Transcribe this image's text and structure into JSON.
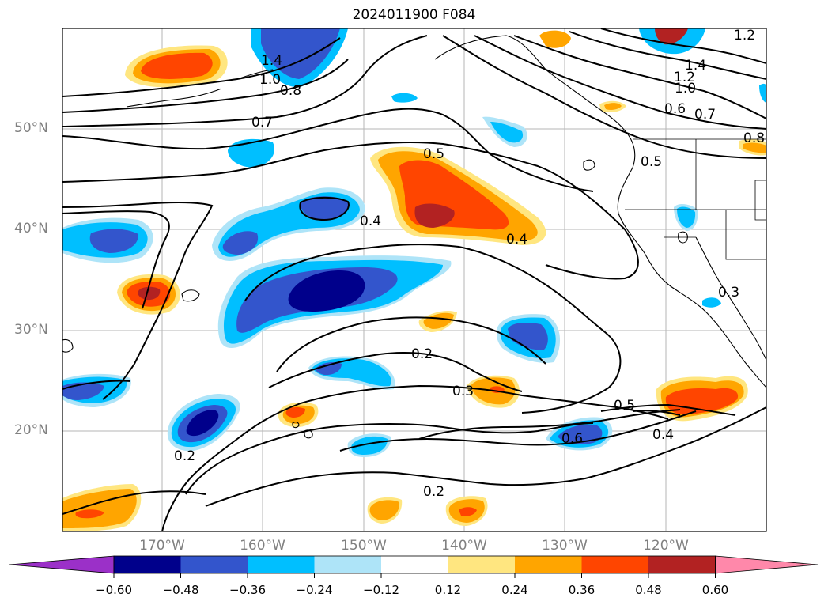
{
  "title": "2024011900 F084",
  "lat_labels": [
    "50°N",
    "40°N",
    "30°N",
    "20°N"
  ],
  "lon_labels": [
    "170°W",
    "160°W",
    "150°W",
    "140°W",
    "130°W",
    "120°W"
  ],
  "colorbar": {
    "ticks": [
      "−0.60",
      "−0.48",
      "−0.36",
      "−0.24",
      "−0.12",
      "0.12",
      "0.24",
      "0.36",
      "0.48",
      "0.60"
    ],
    "colors": [
      "#9b30c8",
      "#00008b",
      "#3355cc",
      "#00bfff",
      "#aee4f8",
      "#ffffff",
      "#ffe680",
      "#ffa500",
      "#ff4500",
      "#b22222",
      "#ff88aa"
    ]
  },
  "contour_labels": [
    "1.0",
    "0.8",
    "0.7",
    "1.4",
    "1.2",
    "1.0",
    "0.6",
    "0.7",
    "0.8",
    "0.5",
    "0.5",
    "0.4",
    "0.4",
    "0.2",
    "0.3",
    "0.5",
    "0.6",
    "0.4",
    "0.2",
    "0.2",
    "0.3",
    "1.4",
    "1.2"
  ]
}
